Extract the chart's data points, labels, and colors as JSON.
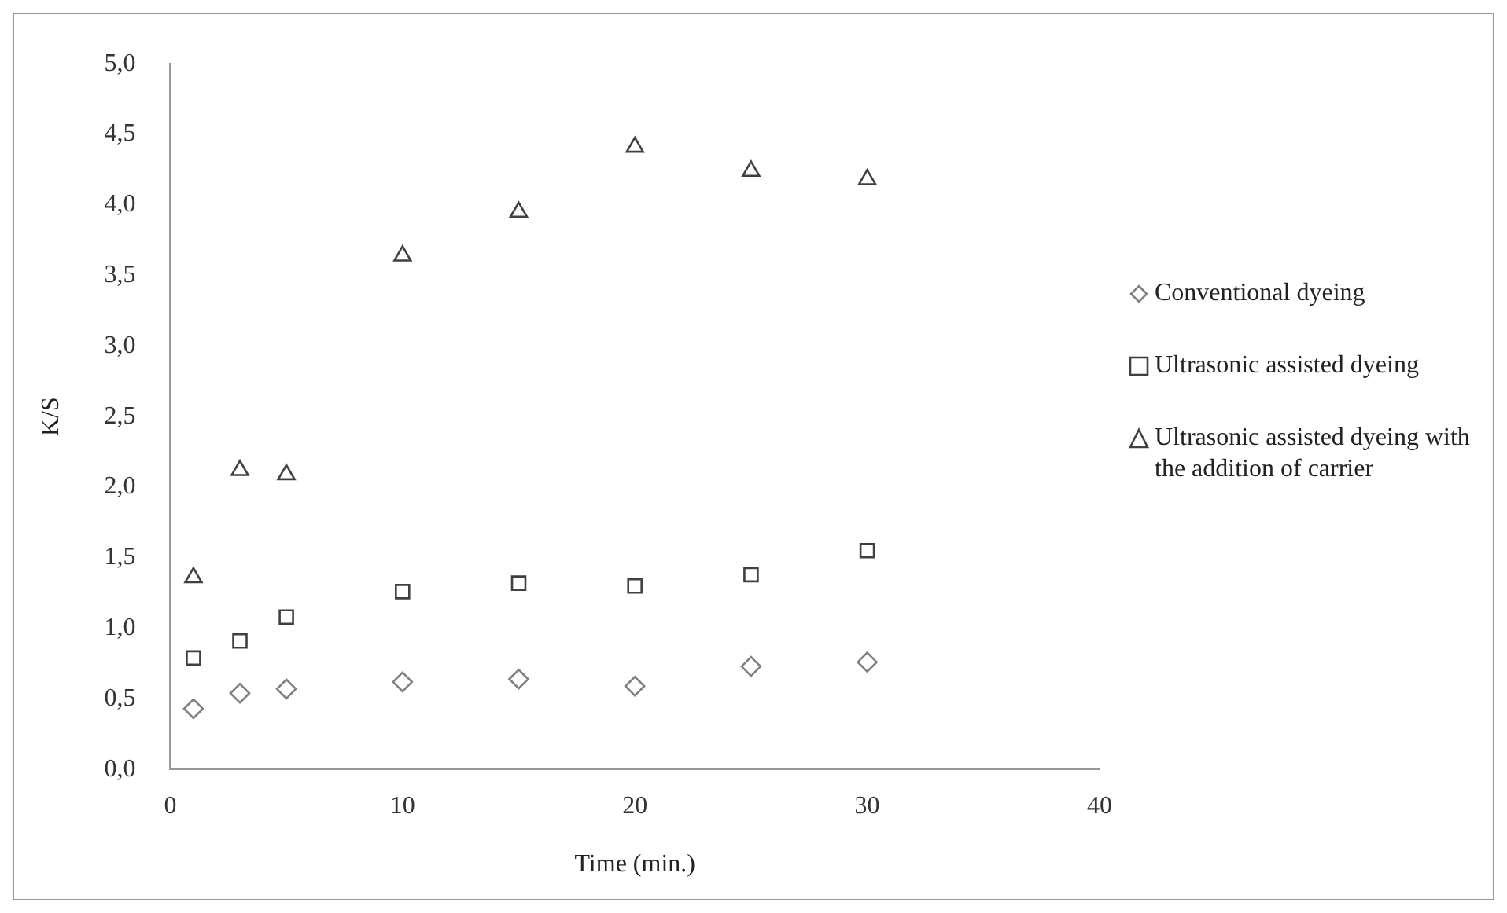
{
  "chart_data": {
    "type": "scatter",
    "xlabel": "Time (min.)",
    "ylabel": "K/S",
    "x": [
      1,
      3,
      5,
      10,
      15,
      20,
      25,
      30
    ],
    "series": [
      {
        "name": "Conventional dyeing",
        "color": "#808080",
        "marker": "diamond",
        "values": [
          0.43,
          0.54,
          0.57,
          0.62,
          0.64,
          0.59,
          0.73,
          0.76
        ]
      },
      {
        "name": "Ultrasonic assisted dyeing",
        "color": "#404040",
        "marker": "square",
        "values": [
          0.79,
          0.91,
          1.08,
          1.26,
          1.32,
          1.3,
          1.38,
          1.55
        ]
      },
      {
        "name": "Ultrasonic assisted dyeing with the addition of carrier",
        "color": "#404040",
        "marker": "triangle",
        "values": [
          1.36,
          2.12,
          2.09,
          3.64,
          3.95,
          4.41,
          4.24,
          4.18
        ]
      }
    ],
    "xlim": [
      0,
      40
    ],
    "xticks": [
      0,
      10,
      20,
      30,
      40
    ],
    "ylim": [
      0,
      5
    ],
    "yticks": [
      {
        "value": 0,
        "label": "0,0"
      },
      {
        "value": 0.5,
        "label": "0,5"
      },
      {
        "value": 1,
        "label": "1,0"
      },
      {
        "value": 1.5,
        "label": "1,5"
      },
      {
        "value": 2,
        "label": "2,0"
      },
      {
        "value": 2.5,
        "label": "2,5"
      },
      {
        "value": 3,
        "label": "3,0"
      },
      {
        "value": 3.5,
        "label": "3,5"
      },
      {
        "value": 4,
        "label": "4,0"
      },
      {
        "value": 4.5,
        "label": "4,5"
      },
      {
        "value": 5,
        "label": "5,0"
      }
    ],
    "grid": false,
    "legend": "right"
  }
}
